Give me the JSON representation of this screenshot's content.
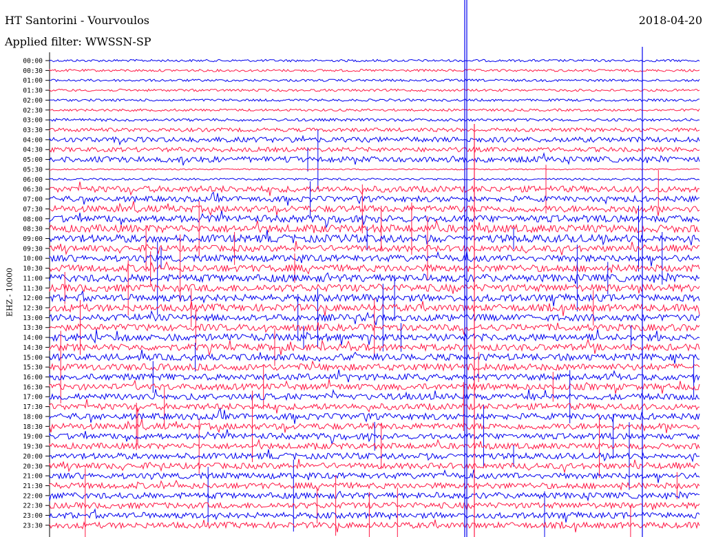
{
  "header": {
    "title": "HT Santorini - Vourvoulos",
    "filter": "Applied filter: WWSSN-SP",
    "date": "2018-04-20"
  },
  "chart_data": {
    "type": "line",
    "title": "HT Santorini - Vourvoulos",
    "subtitle": "Applied filter: WWSSN-SP",
    "ylabel": "EHZ - 10000",
    "date": "2018-04-20",
    "row_times": [
      "00:00",
      "00:30",
      "01:00",
      "01:30",
      "02:00",
      "02:30",
      "03:00",
      "03:30",
      "04:00",
      "04:30",
      "05:00",
      "05:30",
      "06:00",
      "06:30",
      "07:00",
      "07:30",
      "08:00",
      "08:30",
      "09:00",
      "09:30",
      "10:00",
      "10:30",
      "11:00",
      "11:30",
      "12:00",
      "12:30",
      "13:00",
      "13:30",
      "14:00",
      "14:30",
      "15:00",
      "15:30",
      "16:00",
      "16:30",
      "17:00",
      "17:30",
      "18:00",
      "18:30",
      "19:00",
      "19:30",
      "20:00",
      "20:30",
      "21:00",
      "21:30",
      "22:00",
      "22:30",
      "23:00",
      "23:30"
    ],
    "series_colors": [
      "#0000ee",
      "#ff1744"
    ],
    "row_noise_level": [
      0.15,
      0.15,
      0.15,
      0.15,
      0.15,
      0.15,
      0.2,
      0.35,
      0.55,
      0.45,
      0.6,
      0.0,
      0.1,
      0.7,
      0.6,
      0.75,
      0.8,
      0.9,
      0.9,
      0.7,
      0.75,
      0.8,
      0.85,
      0.85,
      0.8,
      0.8,
      0.75,
      0.75,
      0.8,
      0.75,
      0.75,
      0.75,
      0.7,
      0.7,
      0.7,
      0.7,
      0.7,
      0.7,
      0.65,
      0.65,
      0.65,
      0.65,
      0.65,
      0.65,
      0.65,
      0.65,
      0.65,
      0.65
    ]
  }
}
